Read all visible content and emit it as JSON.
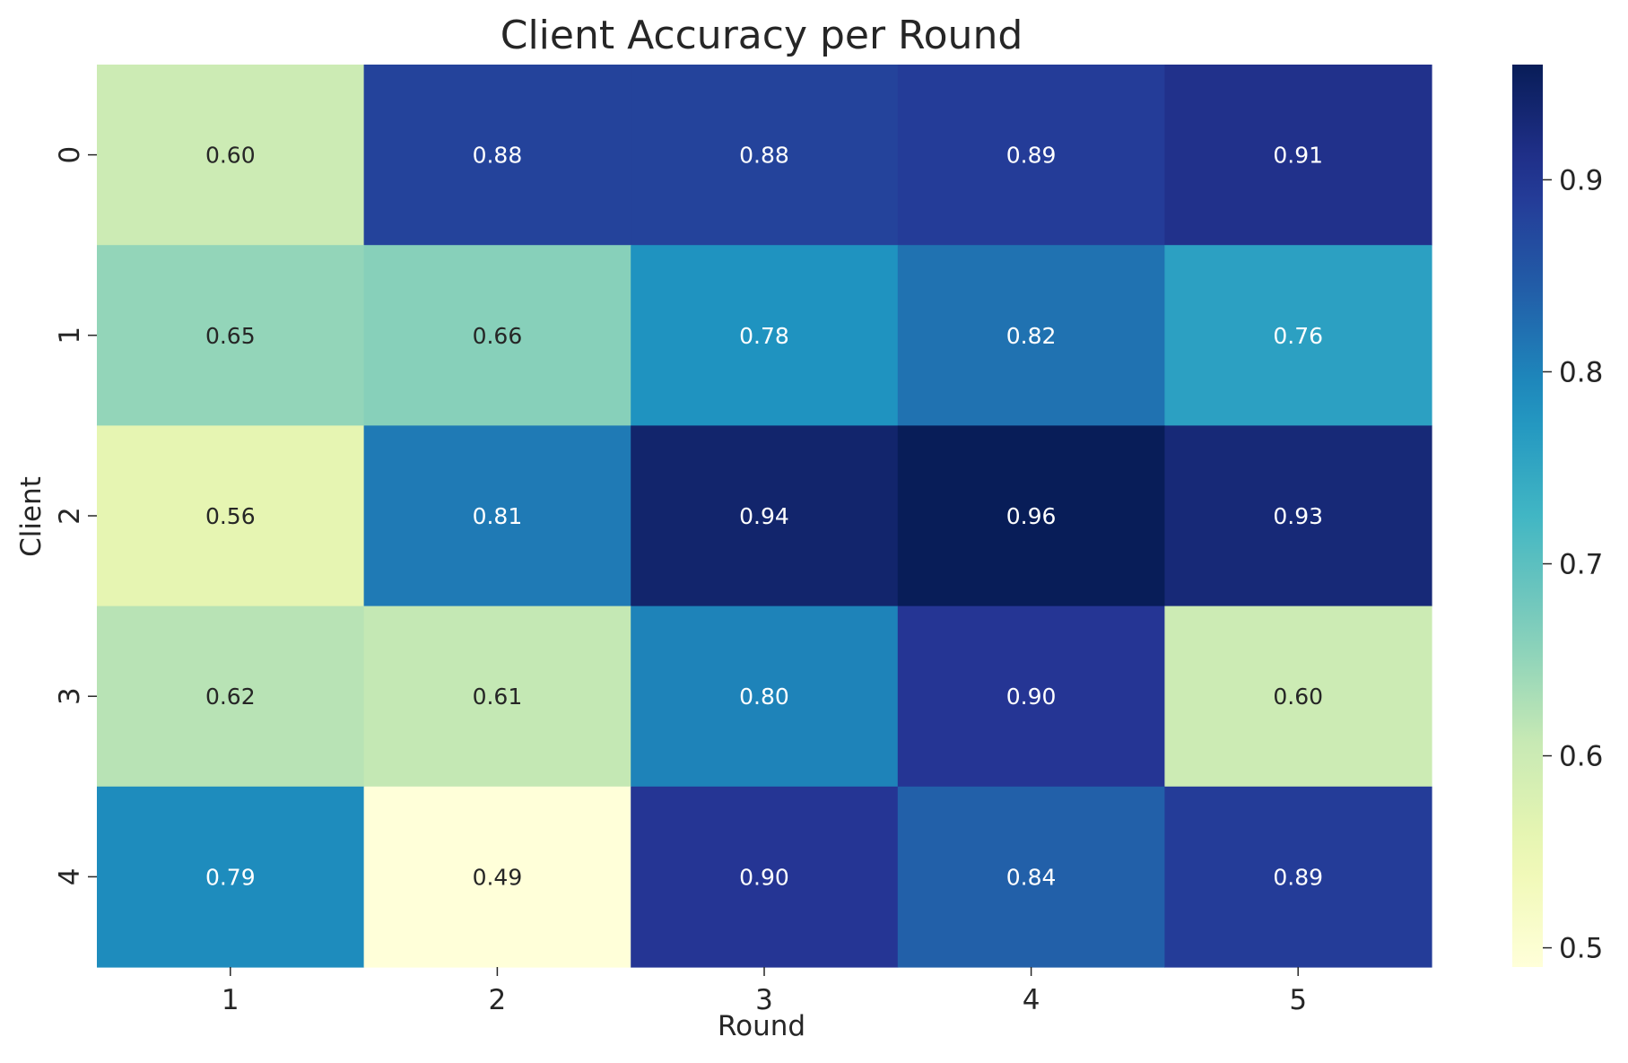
{
  "chart_data": {
    "type": "heatmap",
    "title": "Client Accuracy per Round",
    "xlabel": "Round",
    "ylabel": "Client",
    "x_categories": [
      "1",
      "2",
      "3",
      "4",
      "5"
    ],
    "y_categories": [
      "0",
      "1",
      "2",
      "3",
      "4"
    ],
    "values": [
      [
        0.6,
        0.88,
        0.88,
        0.89,
        0.91
      ],
      [
        0.65,
        0.66,
        0.78,
        0.82,
        0.76
      ],
      [
        0.56,
        0.81,
        0.94,
        0.96,
        0.93
      ],
      [
        0.62,
        0.61,
        0.8,
        0.9,
        0.6
      ],
      [
        0.79,
        0.49,
        0.9,
        0.84,
        0.89
      ]
    ],
    "value_format": "0.00",
    "colormap": "YlGnBu",
    "vmin": 0.49,
    "vmax": 0.96,
    "colorbar_ticks": [
      "0.5",
      "0.6",
      "0.7",
      "0.8",
      "0.9"
    ],
    "grid": false,
    "legend": "colorbar-right"
  }
}
